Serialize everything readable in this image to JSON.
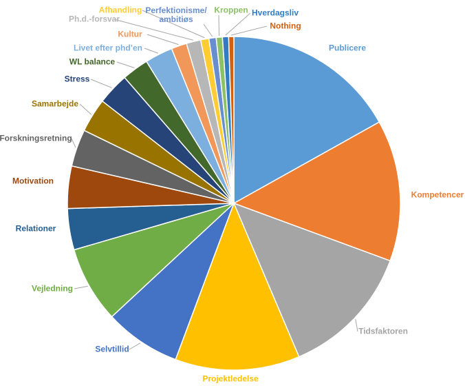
{
  "chart_data": {
    "type": "pie",
    "categories": [
      "Publicere",
      "Kompetencer",
      "Tidsfaktoren",
      "Projektledelse",
      "Selvtillid",
      "Vejledning",
      "Relationer",
      "Motivation",
      "Forskningsretning",
      "Samarbejde",
      "Stress",
      "WL balance",
      "Livet efter phd’en",
      "Kultur",
      "Ph.d.-forsvar",
      "Afhandling",
      "Perfektionisme/ ambitiøs",
      "Kroppen",
      "Hverdagsliv",
      "Nothing"
    ],
    "values": [
      16.9,
      13.7,
      13,
      12.1,
      7.4,
      7.4,
      4,
      4.1,
      3.6,
      3.3,
      3.1,
      2.6,
      2.7,
      1.5,
      1.4,
      0.8,
      0.7,
      0.6,
      0.6,
      0.5
    ],
    "colors": [
      "#5b9bd5",
      "#ed7d31",
      "#a5a5a5",
      "#ffc000",
      "#4472c4",
      "#70ad47",
      "#255e91",
      "#9e480e",
      "#636363",
      "#997300",
      "#264478",
      "#43682b",
      "#7cafdd",
      "#f1975a",
      "#b7b7b7",
      "#ffcd33",
      "#698ed0",
      "#8cc168",
      "#327dc2",
      "#d26012"
    ]
  }
}
